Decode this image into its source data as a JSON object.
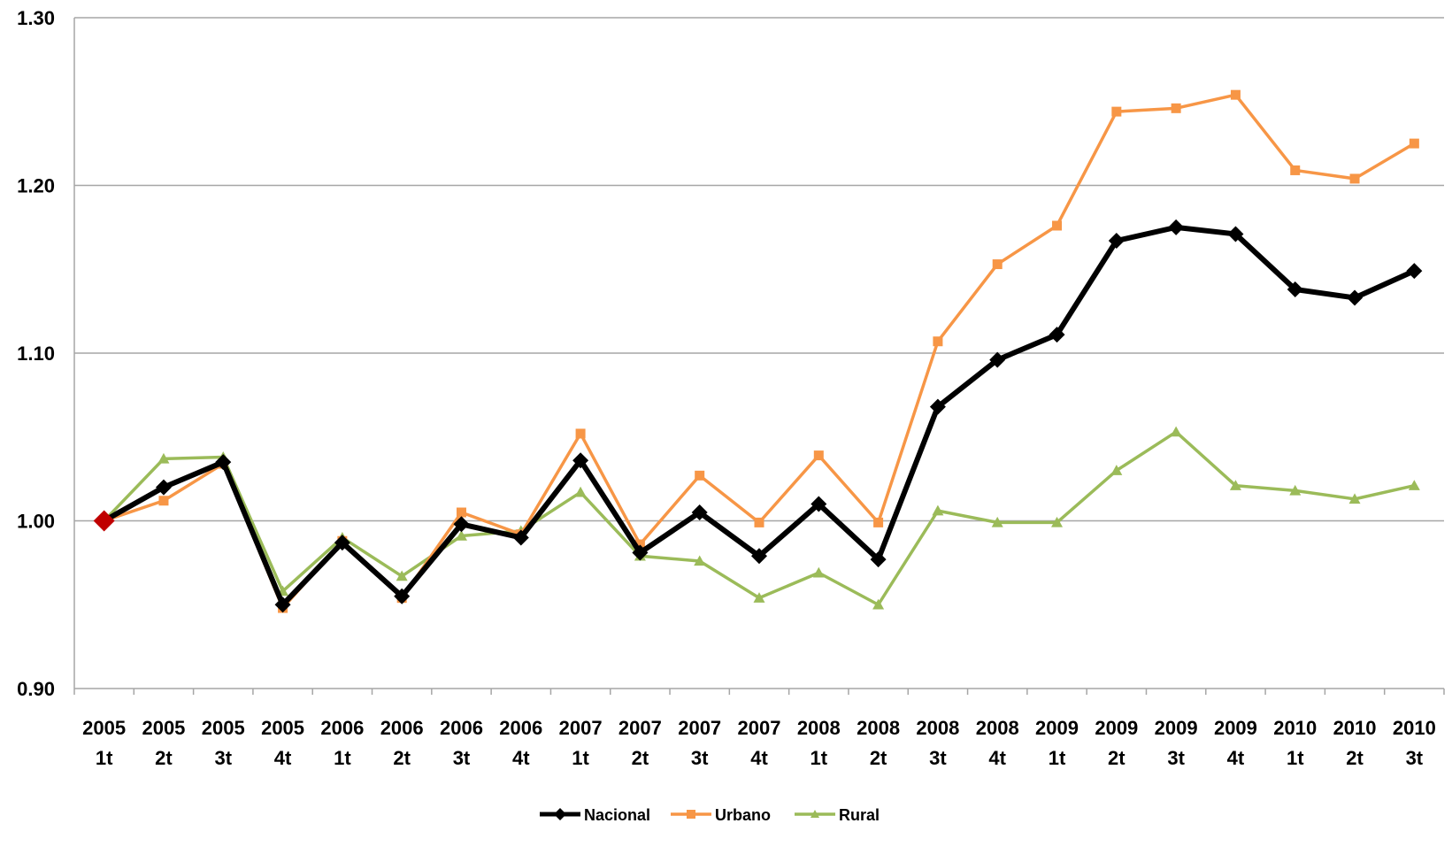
{
  "chart_data": {
    "type": "line",
    "title": "",
    "xlabel": "",
    "ylabel": "",
    "ylim": [
      0.9,
      1.3
    ],
    "y_ticks": [
      "0.90",
      "1.00",
      "1.10",
      "1.20",
      "1.30"
    ],
    "y_tick_values": [
      0.9,
      1.0,
      1.1,
      1.2,
      1.3
    ],
    "grid": "horizontal",
    "legend_position": "bottom",
    "categories": [
      [
        "2005",
        "1t"
      ],
      [
        "2005",
        "2t"
      ],
      [
        "2005",
        "3t"
      ],
      [
        "2005",
        "4t"
      ],
      [
        "2006",
        "1t"
      ],
      [
        "2006",
        "2t"
      ],
      [
        "2006",
        "3t"
      ],
      [
        "2006",
        "4t"
      ],
      [
        "2007",
        "1t"
      ],
      [
        "2007",
        "2t"
      ],
      [
        "2007",
        "3t"
      ],
      [
        "2007",
        "4t"
      ],
      [
        "2008",
        "1t"
      ],
      [
        "2008",
        "2t"
      ],
      [
        "2008",
        "3t"
      ],
      [
        "2008",
        "4t"
      ],
      [
        "2009",
        "1t"
      ],
      [
        "2009",
        "2t"
      ],
      [
        "2009",
        "3t"
      ],
      [
        "2009",
        "4t"
      ],
      [
        "2010",
        "1t"
      ],
      [
        "2010",
        "2t"
      ],
      [
        "2010",
        "3t"
      ]
    ],
    "series": [
      {
        "name": "Nacional",
        "color": "#000000",
        "marker": "diamond",
        "values": [
          1.0,
          1.02,
          1.035,
          0.95,
          0.987,
          0.955,
          0.998,
          0.99,
          1.036,
          0.981,
          1.005,
          0.979,
          1.01,
          0.977,
          1.068,
          1.096,
          1.111,
          1.167,
          1.175,
          1.171,
          1.138,
          1.133,
          1.149
        ]
      },
      {
        "name": "Urbano",
        "color": "#F79646",
        "marker": "square",
        "values": [
          1.0,
          1.012,
          1.034,
          0.948,
          0.988,
          0.954,
          1.005,
          0.992,
          1.052,
          0.986,
          1.027,
          0.999,
          1.039,
          0.999,
          1.107,
          1.153,
          1.176,
          1.244,
          1.246,
          1.254,
          1.209,
          1.204,
          1.225
        ]
      },
      {
        "name": "Rural",
        "color": "#9BBB59",
        "marker": "triangle",
        "values": [
          1.0,
          1.037,
          1.038,
          0.958,
          0.99,
          0.967,
          0.991,
          0.994,
          1.017,
          0.979,
          0.976,
          0.954,
          0.969,
          0.95,
          1.006,
          0.999,
          0.999,
          1.03,
          1.053,
          1.021,
          1.018,
          1.013,
          1.021
        ]
      }
    ],
    "highlight": {
      "series": "Nacional",
      "index": 0,
      "color": "#C00000"
    }
  }
}
